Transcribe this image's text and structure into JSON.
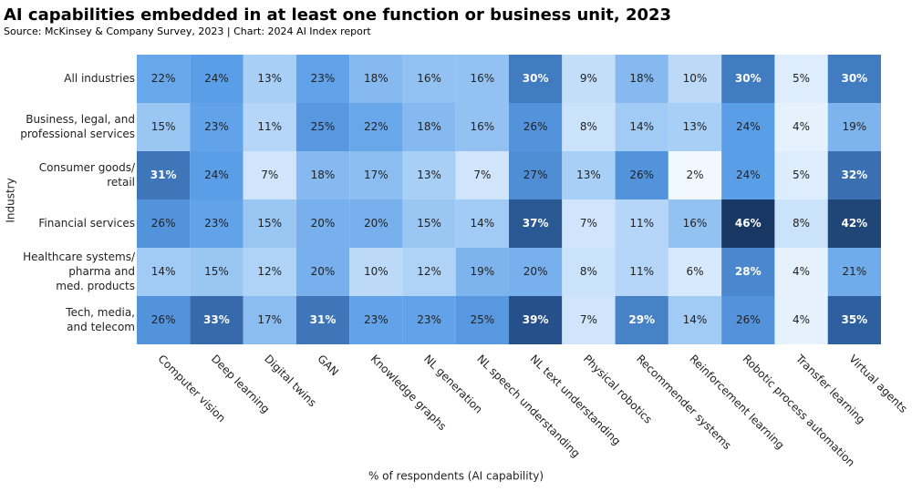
{
  "chart_data": {
    "type": "heatmap",
    "title": "AI capabilities embedded in at least one function or business unit, 2023",
    "subtitle": "Source: McKinsey & Company Survey, 2023 | Chart: 2024 AI Index report",
    "x_label": "% of respondents (AI capability)",
    "y_label": "Industry",
    "x_categories": [
      "Computer vision",
      "Deep learning",
      "Digital twins",
      "GAN",
      "Knowledge graphs",
      "NL generation",
      "NL speech understanding",
      "NL text understanding",
      "Physical robotics",
      "Recommender systems",
      "Reinforcement learning",
      "Robotic process automation",
      "Transfer learning",
      "Virtual agents"
    ],
    "y_categories": [
      [
        "All industries"
      ],
      [
        "Business, legal, and",
        "professional services"
      ],
      [
        "Consumer goods/",
        "retail"
      ],
      [
        "Financial services"
      ],
      [
        "Healthcare systems/",
        "pharma and",
        "med. products"
      ],
      [
        "Tech, media,",
        "and telecom"
      ]
    ],
    "values": [
      [
        22,
        24,
        13,
        23,
        18,
        16,
        16,
        30,
        9,
        18,
        10,
        30,
        5,
        30
      ],
      [
        15,
        23,
        11,
        25,
        22,
        18,
        16,
        26,
        8,
        14,
        13,
        24,
        4,
        19
      ],
      [
        31,
        24,
        7,
        18,
        17,
        13,
        7,
        27,
        13,
        26,
        2,
        24,
        5,
        32
      ],
      [
        26,
        23,
        15,
        20,
        20,
        15,
        14,
        37,
        7,
        11,
        16,
        46,
        8,
        42
      ],
      [
        14,
        15,
        12,
        20,
        10,
        12,
        19,
        20,
        8,
        11,
        6,
        28,
        4,
        21
      ],
      [
        26,
        33,
        17,
        31,
        23,
        23,
        25,
        39,
        7,
        29,
        14,
        26,
        4,
        35
      ]
    ],
    "value_labels": [
      [
        "22%",
        "24%",
        "13%",
        "23%",
        "18%",
        "16%",
        "16%",
        "30%",
        "9%",
        "18%",
        "10%",
        "30%",
        "5%",
        "30%"
      ],
      [
        "15%",
        "23%",
        "11%",
        "25%",
        "22%",
        "18%",
        "16%",
        "26%",
        "8%",
        "14%",
        "13%",
        "24%",
        "4%",
        "19%"
      ],
      [
        "31%",
        "24%",
        "7%",
        "18%",
        "17%",
        "13%",
        "7%",
        "27%",
        "13%",
        "26%",
        "2%",
        "24%",
        "5%",
        "32%"
      ],
      [
        "26%",
        "23%",
        "15%",
        "20%",
        "20%",
        "15%",
        "14%",
        "37%",
        "7%",
        "11%",
        "16%",
        "46%",
        "8%",
        "42%"
      ],
      [
        "14%",
        "15%",
        "12%",
        "20%",
        "10%",
        "12%",
        "19%",
        "20%",
        "8%",
        "11%",
        "6%",
        "28%",
        "4%",
        "21%"
      ],
      [
        "26%",
        "33%",
        "17%",
        "31%",
        "23%",
        "23%",
        "25%",
        "39%",
        "7%",
        "29%",
        "14%",
        "26%",
        "4%",
        "35%"
      ]
    ],
    "color_scale": [
      "#f2f8ff",
      "#a8cff6",
      "#5b9ee8",
      "#2e5f9e",
      "#183763"
    ]
  }
}
